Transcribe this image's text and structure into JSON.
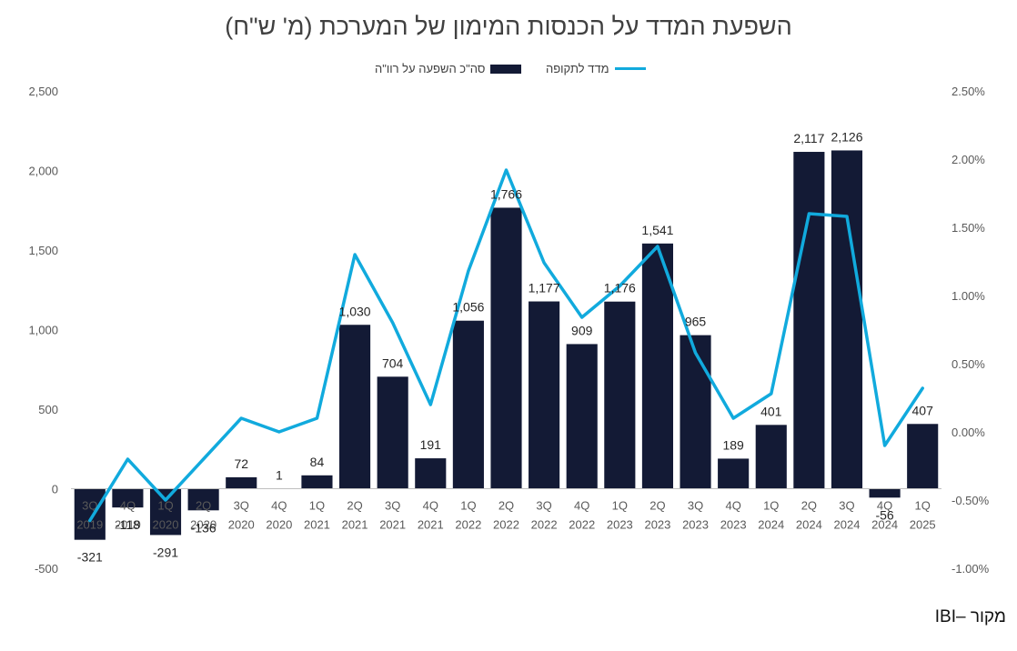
{
  "title": "השפעת המדד על הכנסות המימון של המערכת (מ' ש\"ח)",
  "source": "מקור –IBI",
  "colors": {
    "bar": "#131a35",
    "line": "#11aadd",
    "text": "#595959"
  },
  "chart_data": {
    "type": "bar",
    "categories": [
      [
        "3Q",
        "2019"
      ],
      [
        "4Q",
        "2019"
      ],
      [
        "1Q",
        "2020"
      ],
      [
        "2Q",
        "2020"
      ],
      [
        "3Q",
        "2020"
      ],
      [
        "4Q",
        "2020"
      ],
      [
        "1Q",
        "2021"
      ],
      [
        "2Q",
        "2021"
      ],
      [
        "3Q",
        "2021"
      ],
      [
        "4Q",
        "2021"
      ],
      [
        "1Q",
        "2022"
      ],
      [
        "2Q",
        "2022"
      ],
      [
        "3Q",
        "2022"
      ],
      [
        "4Q",
        "2022"
      ],
      [
        "1Q",
        "2023"
      ],
      [
        "2Q",
        "2023"
      ],
      [
        "3Q",
        "2023"
      ],
      [
        "4Q",
        "2023"
      ],
      [
        "1Q",
        "2024"
      ],
      [
        "2Q",
        "2024"
      ],
      [
        "3Q",
        "2024"
      ],
      [
        "4Q",
        "2024"
      ],
      [
        "1Q",
        "2025"
      ]
    ],
    "series": [
      {
        "name": "סה\"כ השפעה על רוו\"ה",
        "type": "bar",
        "axis": "left",
        "values": [
          -321,
          -118,
          -291,
          -136,
          72,
          1,
          84,
          1030,
          704,
          191,
          1056,
          1766,
          1177,
          909,
          1176,
          1541,
          965,
          189,
          401,
          2117,
          2126,
          -56,
          407
        ],
        "labels": [
          "-321",
          "-118",
          "-291",
          "-136",
          "72",
          "1",
          "84",
          "1,030",
          "704",
          "191",
          "1,056",
          "1,766",
          "1,177",
          "909",
          "1,176",
          "1,541",
          "965",
          "189",
          "401",
          "2,117",
          "2,126",
          "-56",
          "407"
        ]
      },
      {
        "name": "מדד לתקופה",
        "type": "line",
        "axis": "right",
        "values": [
          -0.0065,
          -0.002,
          -0.005,
          -0.002,
          0.001,
          0.0,
          0.001,
          0.013,
          0.008,
          0.002,
          0.0118,
          0.0192,
          0.0124,
          0.0084,
          0.0107,
          0.0136,
          0.0058,
          0.001,
          0.0028,
          0.016,
          0.0158,
          -0.001,
          0.0032
        ]
      }
    ],
    "y_left": {
      "ylim": [
        -500,
        2500
      ],
      "ticks": [
        "-500",
        "0",
        "500",
        "1,000",
        "1,500",
        "2,000",
        "2,500"
      ],
      "tick_values": [
        -500,
        0,
        500,
        1000,
        1500,
        2000,
        2500
      ]
    },
    "y_right": {
      "ylim": [
        -0.01,
        0.025
      ],
      "ticks": [
        "-1.00%",
        "-0.50%",
        "0.00%",
        "0.50%",
        "1.00%",
        "1.50%",
        "2.00%",
        "2.50%"
      ],
      "tick_values": [
        -0.01,
        -0.005,
        0,
        0.005,
        0.01,
        0.015,
        0.02,
        0.025
      ]
    },
    "grid": false,
    "legend_position": "top-center"
  }
}
